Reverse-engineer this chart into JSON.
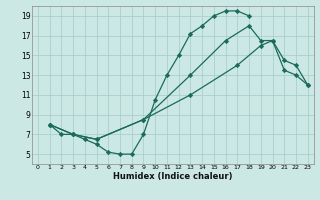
{
  "xlabel": "Humidex (Indice chaleur)",
  "bg_color": "#cce8e4",
  "grid_color": "#aacfcb",
  "line_color": "#1a6b5a",
  "xlim": [
    -0.5,
    23.5
  ],
  "ylim": [
    4,
    20
  ],
  "xticks": [
    0,
    1,
    2,
    3,
    4,
    5,
    6,
    7,
    8,
    9,
    10,
    11,
    12,
    13,
    14,
    15,
    16,
    17,
    18,
    19,
    20,
    21,
    22,
    23
  ],
  "yticks": [
    5,
    7,
    9,
    11,
    13,
    15,
    17,
    19
  ],
  "line1_x": [
    1,
    2,
    3,
    4,
    5,
    6,
    7,
    8,
    9,
    10,
    11,
    12,
    13,
    14,
    15,
    16,
    17,
    18
  ],
  "line1_y": [
    8,
    7,
    7,
    6.5,
    6,
    5.2,
    5,
    5,
    7,
    10.5,
    13,
    15,
    17.2,
    18,
    19,
    19.5,
    19.5,
    19
  ],
  "line2_x": [
    1,
    3,
    5,
    9,
    13,
    16,
    18,
    19,
    20,
    21,
    22,
    23
  ],
  "line2_y": [
    8,
    7,
    6.5,
    8.5,
    13,
    16.5,
    18,
    16.5,
    16.5,
    13.5,
    13,
    12
  ],
  "line3_x": [
    1,
    3,
    5,
    9,
    13,
    17,
    19,
    20,
    21,
    22,
    23
  ],
  "line3_y": [
    8,
    7,
    6.5,
    8.5,
    11,
    14,
    16,
    16.5,
    14.5,
    14,
    12
  ]
}
